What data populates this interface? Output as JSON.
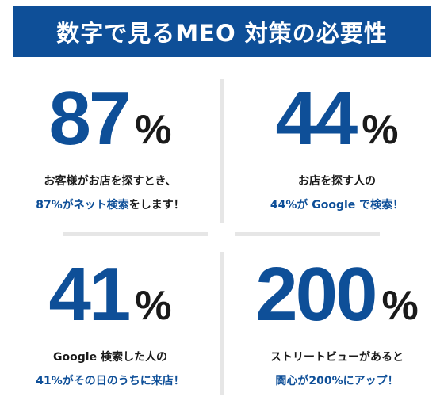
{
  "title": "数字で見るMEO 対策の必要性",
  "colors": {
    "brand_blue": "#0e4f98",
    "text_dark": "#1a1a1a",
    "divider": "#e6e6e6"
  },
  "stats": [
    {
      "number": "87",
      "unit": "%",
      "line1": "お客様がお店を探すとき、",
      "line2_highlight": "87%がネット検索",
      "line2_rest": "をします！"
    },
    {
      "number": "44",
      "unit": "%",
      "line1": "お店を探す人の",
      "line2_highlight": "44%が Google で検索！",
      "line2_rest": ""
    },
    {
      "number": "41",
      "unit": "%",
      "line1": "Google 検索した人の",
      "line2_highlight": "41%がその日のうちに来店！",
      "line2_rest": ""
    },
    {
      "number": "200",
      "unit": "%",
      "line1": "ストリートビューがあると",
      "line2_highlight": "関心が200%にアップ！",
      "line2_rest": ""
    }
  ]
}
